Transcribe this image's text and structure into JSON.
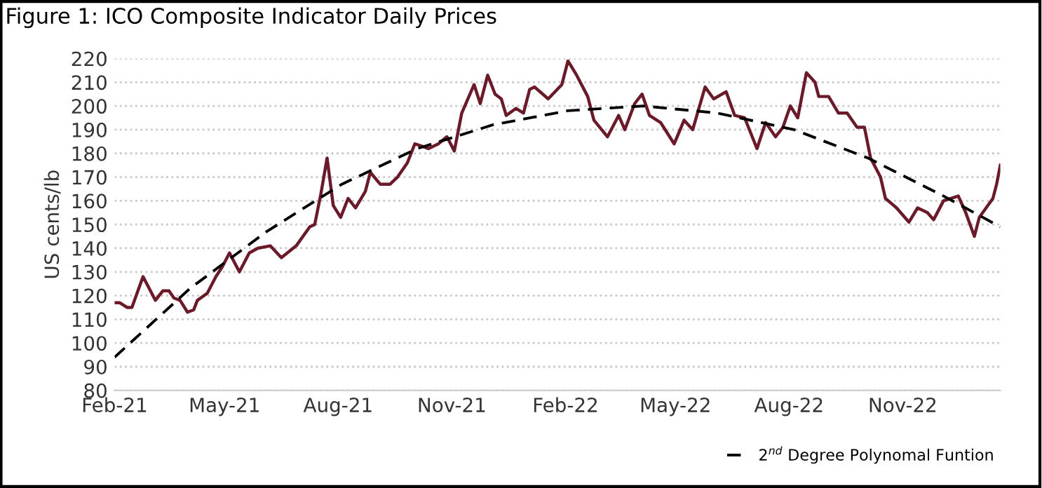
{
  "chart_data": {
    "type": "line",
    "title": "Figure 1: ICO Composite Indicator Daily Prices",
    "ylabel": "US cents/lb",
    "ylim": [
      80,
      220
    ],
    "yticks": [
      80,
      90,
      100,
      110,
      120,
      130,
      140,
      150,
      160,
      170,
      180,
      190,
      200,
      210,
      220
    ],
    "xlim": [
      "2021-02-01",
      "2023-01-19"
    ],
    "xticks": [
      {
        "value": "2021-02-01",
        "label": "Feb-21"
      },
      {
        "value": "2021-05-01",
        "label": "May-21"
      },
      {
        "value": "2021-08-01",
        "label": "Aug-21"
      },
      {
        "value": "2021-11-01",
        "label": "Nov-21"
      },
      {
        "value": "2022-02-01",
        "label": "Feb-22"
      },
      {
        "value": "2022-05-01",
        "label": "May-22"
      },
      {
        "value": "2022-08-01",
        "label": "Aug-22"
      },
      {
        "value": "2022-11-01",
        "label": "Nov-22"
      }
    ],
    "grid": "y",
    "legend": "bottom right",
    "series": [
      {
        "color": "#6b1a2a",
        "line_style": "solid",
        "x": [
          "2021-02-01",
          "2021-02-05",
          "2021-02-11",
          "2021-02-15",
          "2021-02-24",
          "2021-03-06",
          "2021-03-12",
          "2021-03-17",
          "2021-03-21",
          "2021-03-26",
          "2021-04-01",
          "2021-04-06",
          "2021-04-09",
          "2021-04-17",
          "2021-04-24",
          "2021-04-29",
          "2021-05-05",
          "2021-05-13",
          "2021-05-21",
          "2021-05-28",
          "2021-06-07",
          "2021-06-16",
          "2021-06-28",
          "2021-07-09",
          "2021-07-13",
          "2021-07-18",
          "2021-07-23",
          "2021-07-28",
          "2021-08-03",
          "2021-08-09",
          "2021-08-15",
          "2021-08-23",
          "2021-08-27",
          "2021-09-04",
          "2021-09-12",
          "2021-09-18",
          "2021-09-26",
          "2021-10-02",
          "2021-10-08",
          "2021-10-13",
          "2021-10-21",
          "2021-10-28",
          "2021-11-03",
          "2021-11-09",
          "2021-11-19",
          "2021-11-24",
          "2021-11-30",
          "2021-12-06",
          "2021-12-11",
          "2021-12-15",
          "2021-12-23",
          "2021-12-29",
          "2022-01-03",
          "2022-01-07",
          "2022-01-18",
          "2022-01-29",
          "2022-02-03",
          "2022-02-10",
          "2022-02-19",
          "2022-02-24",
          "2022-03-07",
          "2022-03-16",
          "2022-03-21",
          "2022-03-29",
          "2022-04-04",
          "2022-04-10",
          "2022-04-19",
          "2022-04-30",
          "2022-05-08",
          "2022-05-15",
          "2022-05-25",
          "2022-06-01",
          "2022-06-11",
          "2022-06-18",
          "2022-06-26",
          "2022-07-06",
          "2022-07-13",
          "2022-07-21",
          "2022-07-27",
          "2022-08-02",
          "2022-08-08",
          "2022-08-15",
          "2022-08-22",
          "2022-08-25",
          "2022-09-02",
          "2022-09-10",
          "2022-09-17",
          "2022-09-25",
          "2022-10-01",
          "2022-10-06",
          "2022-10-14",
          "2022-10-18",
          "2022-10-27",
          "2022-11-06",
          "2022-11-13",
          "2022-11-21",
          "2022-11-26",
          "2022-12-04",
          "2022-12-16",
          "2022-12-22",
          "2022-12-29",
          "2023-01-02",
          "2023-01-13",
          "2023-01-16",
          "2023-01-19"
        ],
        "values": [
          117,
          117,
          115,
          115,
          128,
          118,
          122,
          122,
          119,
          118,
          113,
          114,
          118,
          121,
          128,
          132,
          138,
          130,
          138,
          140,
          141,
          136,
          141,
          149,
          150,
          163,
          178,
          158,
          153,
          161,
          157,
          164,
          172,
          167,
          167,
          170,
          176,
          184,
          183,
          182,
          184,
          187,
          181,
          197,
          209,
          201,
          213,
          205,
          203,
          196,
          199,
          197,
          207,
          208,
          203,
          209,
          219,
          213,
          204,
          194,
          187,
          196,
          190,
          201,
          205,
          196,
          193,
          184,
          194,
          190,
          208,
          203,
          206,
          196,
          195,
          182,
          193,
          187,
          191,
          200,
          195,
          214,
          210,
          204,
          204,
          197,
          197,
          191,
          191,
          178,
          170,
          161,
          157,
          151,
          157,
          155,
          152,
          160,
          162,
          155,
          145,
          153,
          161,
          167,
          175
        ]
      },
      {
        "name": "2$^{nd}$ Degree Polynomal Funtion",
        "color": "#000000",
        "line_style": "dashed",
        "x": [
          "2021-02-01",
          "2021-04-03",
          "2021-06-04",
          "2021-08-04",
          "2021-10-04",
          "2021-12-04",
          "2022-02-03",
          "2022-04-05",
          "2022-06-04",
          "2022-08-05",
          "2022-10-04",
          "2022-12-04",
          "2023-01-19"
        ],
        "values": [
          94,
          123,
          147,
          167,
          182,
          192,
          198,
          200,
          197,
          190,
          178,
          162,
          149
        ]
      }
    ]
  }
}
